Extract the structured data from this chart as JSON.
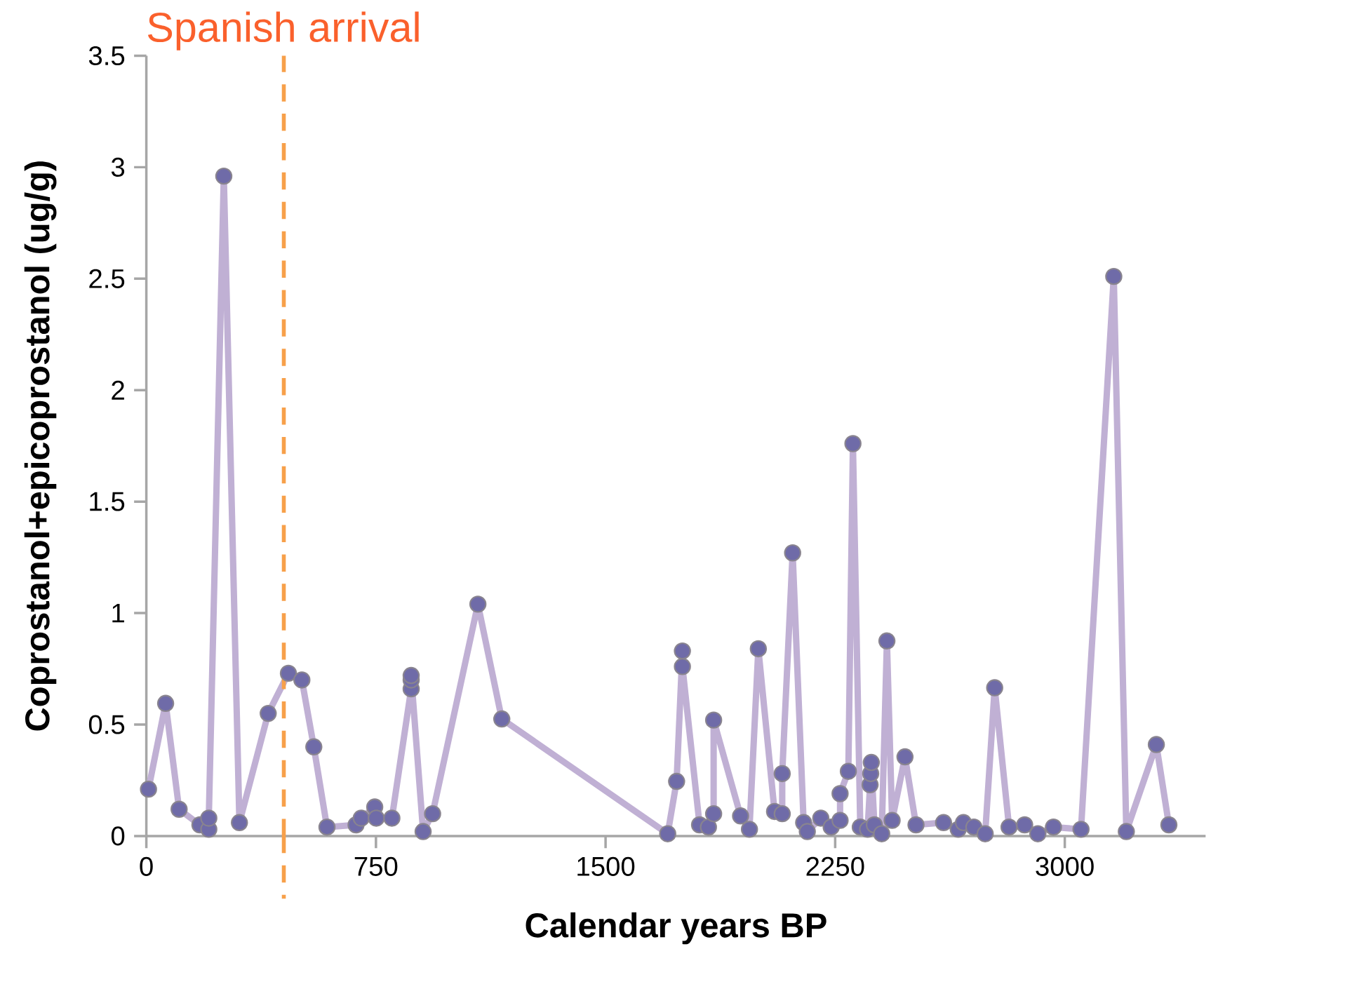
{
  "chart_data": {
    "type": "line",
    "xlabel": "Calendar years BP",
    "ylabel": "Coprostanol+epicoprostanol (ug/g)",
    "xlim": [
      0,
      3460
    ],
    "ylim": [
      0,
      3.5
    ],
    "xticks": [
      0,
      750,
      1500,
      2250,
      3000
    ],
    "yticks": [
      0,
      0.5,
      1,
      1.5,
      2,
      2.5,
      3,
      3.5
    ],
    "grid": false,
    "marker": "circle",
    "line_style": "solid",
    "ref_lines": [
      {
        "axis": "x",
        "value": 449,
        "label": "Spanish arrival",
        "color": "#f7a04a",
        "line_style": "dashed"
      }
    ],
    "series": [
      {
        "color": "#c0b0d4",
        "x": [
          7,
          63,
          107,
          175,
          204,
          204,
          253,
          304,
          398,
          464,
          508,
          547,
          590,
          685,
          702,
          746,
          751,
          802,
          865,
          865,
          865,
          904,
          935,
          1083,
          1161,
          1703,
          1732,
          1751,
          1751,
          1807,
          1836,
          1853,
          1853,
          1941,
          1970,
          1999,
          2052,
          2077,
          2077,
          2111,
          2147,
          2159,
          2203,
          2237,
          2266,
          2266,
          2293,
          2308,
          2332,
          2356,
          2364,
          2366,
          2368,
          2378,
          2402,
          2419,
          2436,
          2478,
          2514,
          2604,
          2652,
          2669,
          2703,
          2740,
          2771,
          2818,
          2869,
          2912,
          2963,
          3053,
          3160,
          3201,
          3299,
          3340
        ],
        "values": [
          0.21,
          0.595,
          0.12,
          0.05,
          0.03,
          0.08,
          2.96,
          0.06,
          0.55,
          0.73,
          0.7,
          0.4,
          0.04,
          0.05,
          0.08,
          0.13,
          0.08,
          0.08,
          0.66,
          0.7,
          0.72,
          0.02,
          0.1,
          1.04,
          0.525,
          0.01,
          0.245,
          0.83,
          0.76,
          0.05,
          0.04,
          0.1,
          0.52,
          0.09,
          0.03,
          0.84,
          0.11,
          0.1,
          0.28,
          1.27,
          0.06,
          0.02,
          0.08,
          0.04,
          0.07,
          0.19,
          0.29,
          1.76,
          0.04,
          0.03,
          0.23,
          0.28,
          0.33,
          0.05,
          0.01,
          0.875,
          0.07,
          0.355,
          0.05,
          0.06,
          0.03,
          0.06,
          0.04,
          0.01,
          0.665,
          0.04,
          0.05,
          0.01,
          0.04,
          0.03,
          2.51,
          0.02,
          0.41,
          0.05
        ]
      }
    ]
  }
}
